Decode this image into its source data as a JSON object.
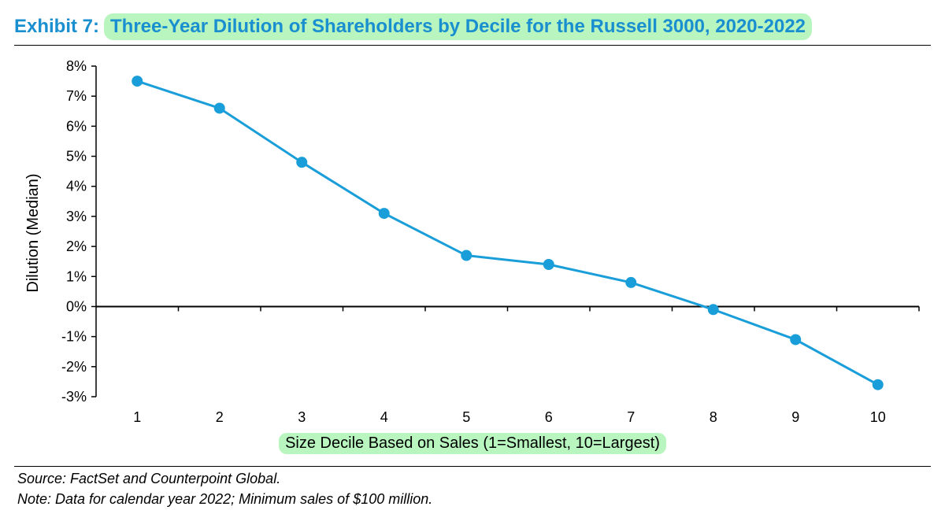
{
  "header": {
    "exhibit": "Exhibit 7:",
    "title": "Three-Year Dilution of Shareholders by Decile for the Russell 3000, 2020-2022"
  },
  "footer": {
    "source": "Source: FactSet and Counterpoint Global.",
    "note": "Note: Data for calendar year 2022; Minimum sales of $100 million."
  },
  "colors": {
    "accent": "#1a8fd0",
    "highlight": "#b8f5bf",
    "series": "#1a9ed9"
  },
  "chart_data": {
    "type": "line",
    "title": "Three-Year Dilution of Shareholders by Decile for the Russell 3000, 2020-2022",
    "xlabel": "Size Decile Based on Sales (1=Smallest, 10=Largest)",
    "ylabel": "Dilution (Median)",
    "categories": [
      "1",
      "2",
      "3",
      "4",
      "5",
      "6",
      "7",
      "8",
      "9",
      "10"
    ],
    "series": [
      {
        "name": "Dilution (Median)",
        "values": [
          7.5,
          6.6,
          4.8,
          3.1,
          1.7,
          1.4,
          0.8,
          -0.1,
          -1.1,
          -2.6
        ]
      }
    ],
    "ylim": [
      -3,
      8
    ],
    "yticks": [
      8,
      7,
      6,
      5,
      4,
      3,
      2,
      1,
      0,
      -1,
      -2,
      -3
    ],
    "ytick_labels": [
      "8%",
      "7%",
      "6%",
      "5%",
      "4%",
      "3%",
      "2%",
      "1%",
      "0%",
      "-1%",
      "-2%",
      "-3%"
    ],
    "grid": false,
    "legend": "none"
  }
}
